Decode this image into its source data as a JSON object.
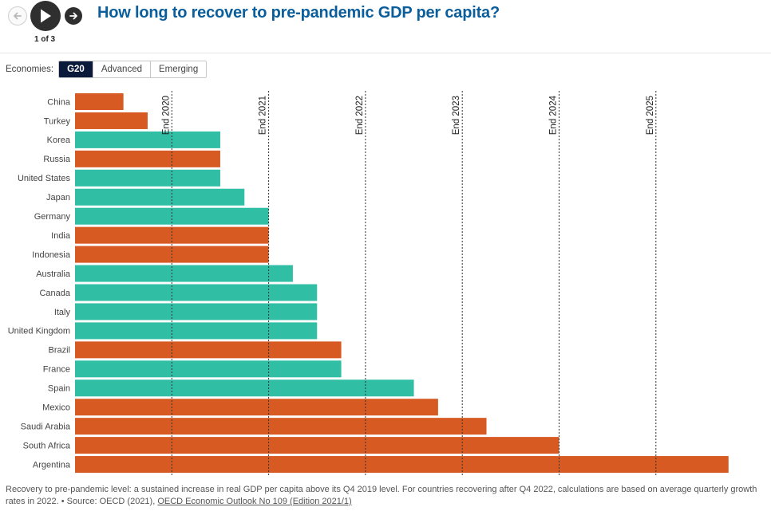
{
  "nav": {
    "step_label": "1 of 3",
    "prev_icon": "arrow-left-icon",
    "play_icon": "play-icon",
    "next_icon": "arrow-right-icon"
  },
  "header": {
    "title": "How long to recover to pre-pandemic GDP per capita?"
  },
  "filter": {
    "label": "Economies:",
    "options": [
      "G20",
      "Advanced",
      "Emerging"
    ],
    "selected": "G20"
  },
  "colors": {
    "advanced": "#30bfa5",
    "emerging": "#d65a22",
    "title": "#0a5e9c",
    "active_button": "#0b1a3a"
  },
  "chart_data": {
    "type": "bar",
    "orientation": "horizontal",
    "x_unit": "years after Q4 2019",
    "xlim": [
      0,
      6.75
    ],
    "reference_lines": [
      {
        "label": "End 2020",
        "x": 1
      },
      {
        "label": "End 2021",
        "x": 2
      },
      {
        "label": "End 2022",
        "x": 3
      },
      {
        "label": "End 2023",
        "x": 4
      },
      {
        "label": "End 2024",
        "x": 5
      },
      {
        "label": "End 2025",
        "x": 6
      }
    ],
    "categories": [
      "China",
      "Turkey",
      "Korea",
      "Russia",
      "United States",
      "Japan",
      "Germany",
      "India",
      "Indonesia",
      "Australia",
      "Canada",
      "Italy",
      "United Kingdom",
      "Brazil",
      "France",
      "Spain",
      "Mexico",
      "Saudi Arabia",
      "South Africa",
      "Argentina"
    ],
    "values": [
      0.5,
      0.75,
      1.5,
      1.5,
      1.5,
      1.75,
      2.0,
      2.0,
      2.0,
      2.25,
      2.5,
      2.5,
      2.5,
      2.75,
      2.75,
      3.5,
      3.75,
      4.25,
      5.0,
      6.75
    ],
    "groups": [
      "emerging",
      "emerging",
      "advanced",
      "emerging",
      "advanced",
      "advanced",
      "advanced",
      "emerging",
      "emerging",
      "advanced",
      "advanced",
      "advanced",
      "advanced",
      "emerging",
      "advanced",
      "advanced",
      "emerging",
      "emerging",
      "emerging",
      "emerging"
    ],
    "grid": false,
    "legend": "none"
  },
  "footnote": {
    "text": "Recovery to pre-pandemic level: a sustained increase in real GDP per capita above its Q4 2019 level. For countries recovering after Q4 2022, calculations are based on average quarterly growth rates in 2022. • Source: OECD (2021), ",
    "link_text": "OECD Economic Outlook No 109 (Edition 2021/1)"
  }
}
